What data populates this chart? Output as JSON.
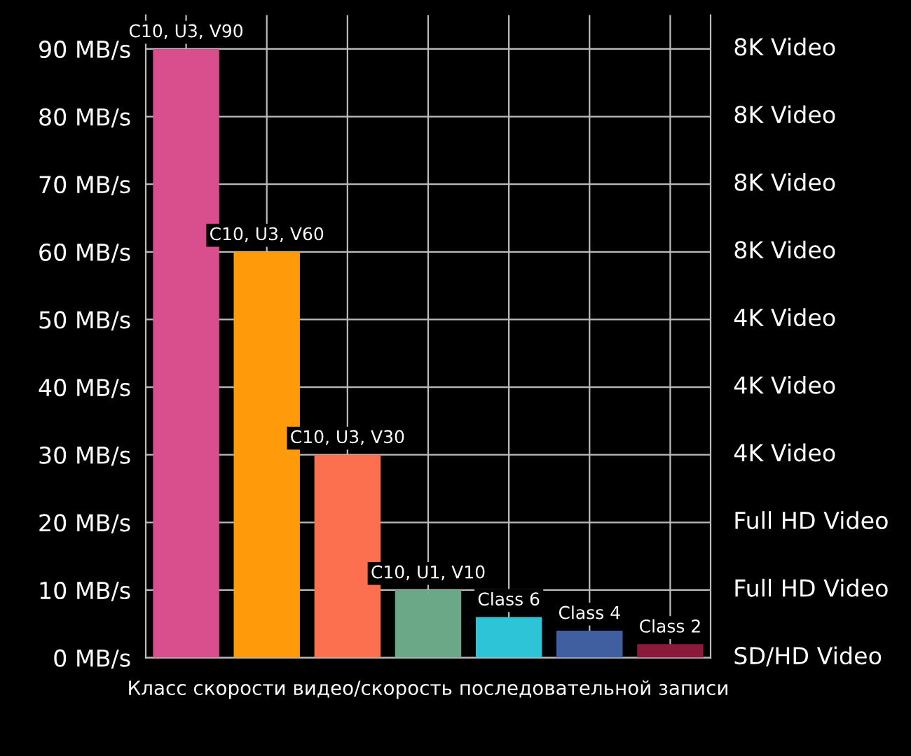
{
  "chart_data": {
    "type": "bar",
    "xlabel": "Класс скорости видео/скорость последовательной записи",
    "categories": [
      "C10, U3, V90",
      "C10, U3, V60",
      "C10, U3, V30",
      "C10, U1, V10",
      "Class 6",
      "Class 4",
      "Class 2"
    ],
    "values": [
      90,
      60,
      30,
      10,
      6,
      4,
      2
    ],
    "colors": [
      "#d94f8e",
      "#ff9a0a",
      "#fc7050",
      "#6aa887",
      "#2ec4d8",
      "#3f5fa0",
      "#8b1a3a"
    ],
    "ylim": [
      0,
      95
    ],
    "yticks": [
      {
        "value": 0,
        "label": "0 MB/s"
      },
      {
        "value": 10,
        "label": "10 MB/s"
      },
      {
        "value": 20,
        "label": "20 MB/s"
      },
      {
        "value": 30,
        "label": "30 MB/s"
      },
      {
        "value": 40,
        "label": "40 MB/s"
      },
      {
        "value": 50,
        "label": "50 MB/s"
      },
      {
        "value": 60,
        "label": "60 MB/s"
      },
      {
        "value": 70,
        "label": "70 MB/s"
      },
      {
        "value": 80,
        "label": "80 MB/s"
      },
      {
        "value": 90,
        "label": "90 MB/s"
      }
    ],
    "annotations": [
      "SD/HD Video",
      "Full HD Video",
      "Full HD Video",
      "4K Video",
      "4K Video",
      "4K Video",
      "8K Video",
      "8K Video",
      "8K Video",
      "8K Video"
    ],
    "grid": true
  }
}
